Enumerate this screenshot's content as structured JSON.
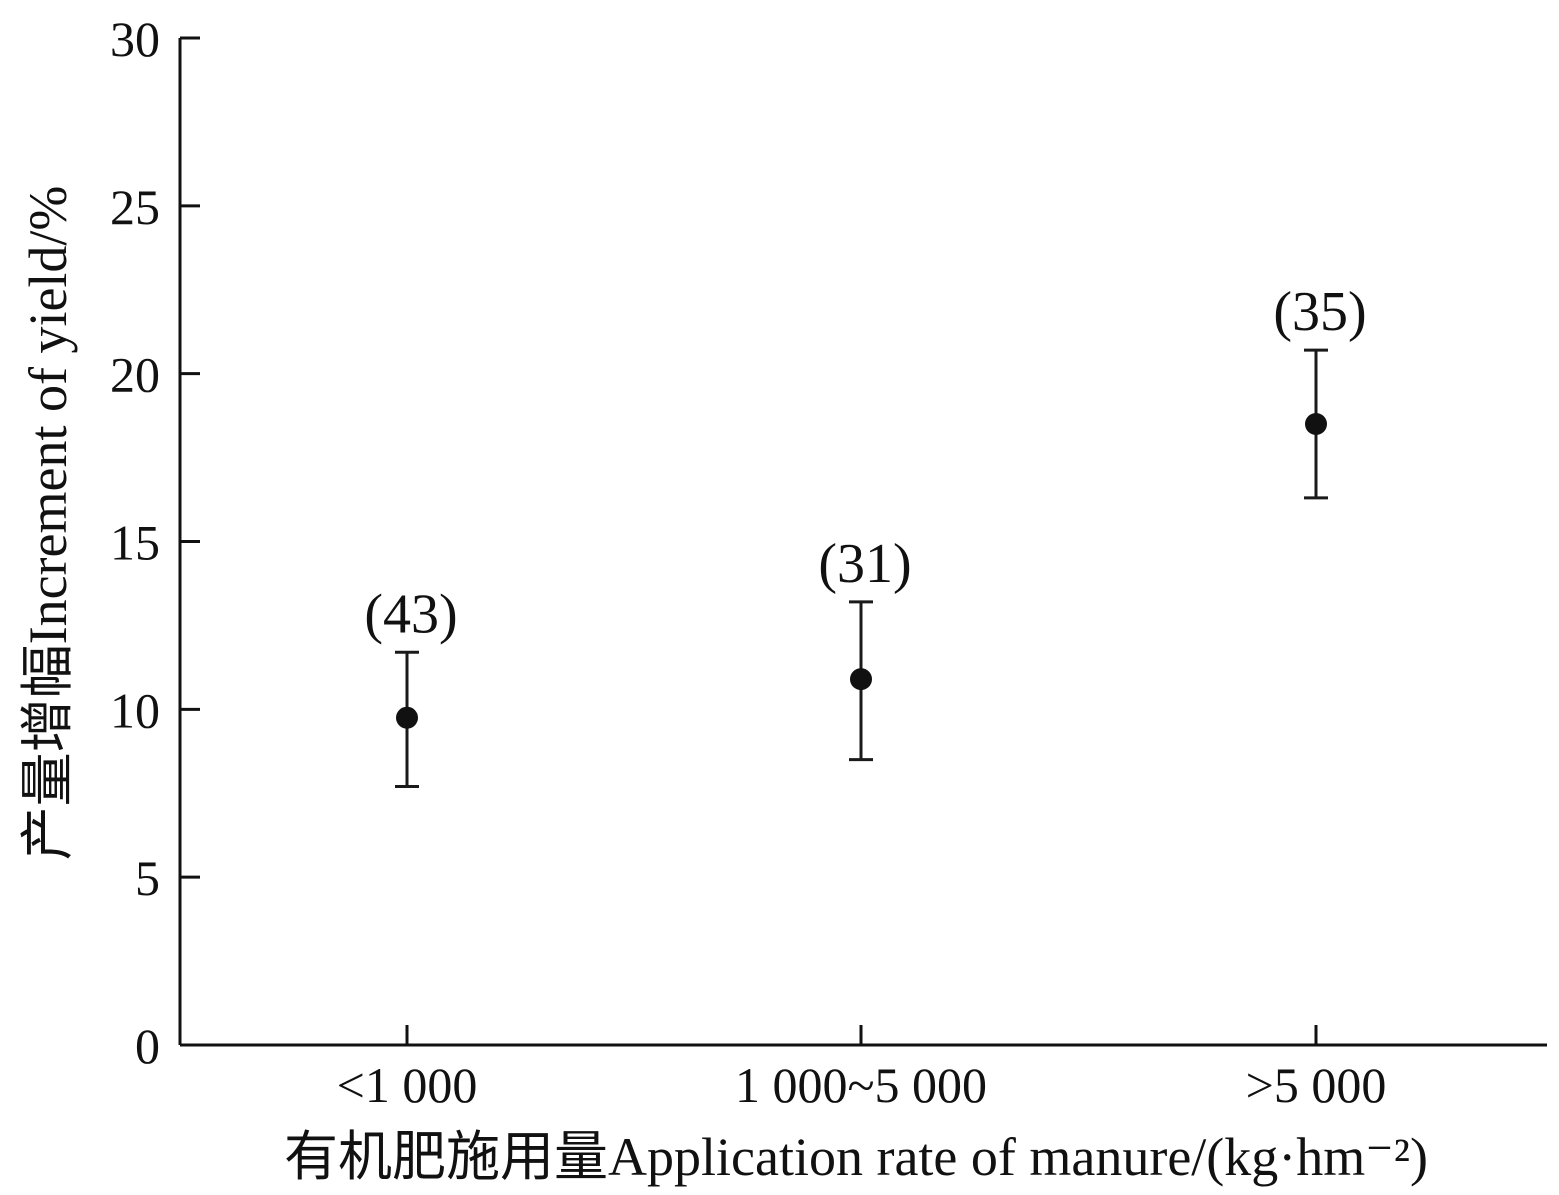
{
  "chart_data": {
    "type": "scatter",
    "categories": [
      "<1 000",
      "1 000~5 000",
      ">5 000"
    ],
    "values": [
      9.75,
      10.9,
      18.5
    ],
    "error_low": [
      7.7,
      8.5,
      16.3
    ],
    "error_high": [
      11.7,
      13.2,
      20.7
    ],
    "sample_sizes": [
      "(43)",
      "(31)",
      "(35)"
    ],
    "xlabel": "有机肥施用量Application rate of manure/(kg·hm⁻²)",
    "ylabel": "产量增幅Increment of yield/%",
    "ylim": [
      0,
      30
    ],
    "yticks": [
      "0",
      "5",
      "10",
      "15",
      "20",
      "25",
      "30"
    ],
    "grid": false,
    "legend": "none",
    "marker_color": "#111111"
  }
}
